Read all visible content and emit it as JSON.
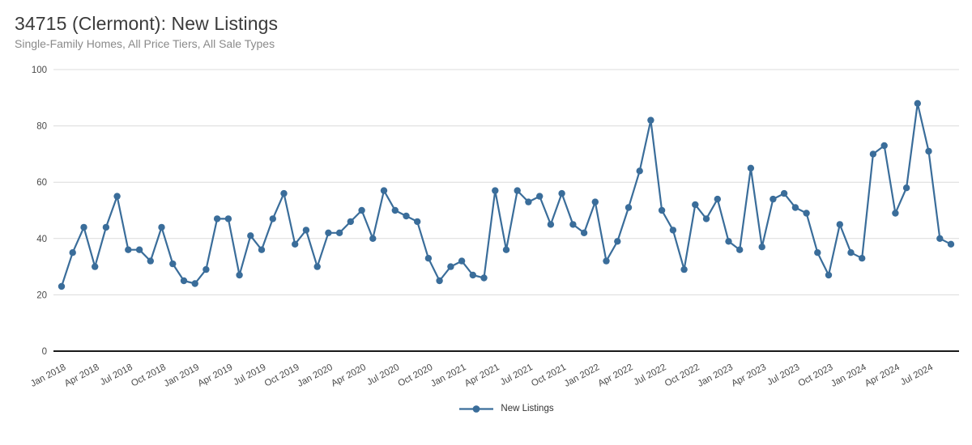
{
  "header": {
    "title": "34715 (Clermont): New Listings",
    "subtitle": "Single-Family Homes, All Price Tiers, All Sale Types"
  },
  "legend": {
    "label": "New Listings",
    "position": "bottom-center"
  },
  "colors": {
    "line": "#3a6d9a",
    "marker": "#3a6d9a",
    "grid": "#dcdcdc",
    "axis": "#1a1a1a",
    "tick_text": "#4a4a4a",
    "title_text": "#3b3b3b",
    "subtitle_text": "#8a8a8a",
    "background": "#ffffff"
  },
  "chart_data": {
    "type": "line",
    "title": "34715 (Clermont): New Listings",
    "subtitle": "Single-Family Homes, All Price Tiers, All Sale Types",
    "marker": "circle",
    "grid": "horizontal",
    "legend_position": "bottom-center",
    "ylim": [
      0,
      100
    ],
    "y_ticks": [
      0,
      20,
      40,
      60,
      80,
      100
    ],
    "x_tick_interval": 3,
    "x_label_rotation": -28,
    "x": [
      "Jan 2018",
      "Feb 2018",
      "Mar 2018",
      "Apr 2018",
      "May 2018",
      "Jun 2018",
      "Jul 2018",
      "Aug 2018",
      "Sep 2018",
      "Oct 2018",
      "Nov 2018",
      "Dec 2018",
      "Jan 2019",
      "Feb 2019",
      "Mar 2019",
      "Apr 2019",
      "May 2019",
      "Jun 2019",
      "Jul 2019",
      "Aug 2019",
      "Sep 2019",
      "Oct 2019",
      "Nov 2019",
      "Dec 2019",
      "Jan 2020",
      "Feb 2020",
      "Mar 2020",
      "Apr 2020",
      "May 2020",
      "Jun 2020",
      "Jul 2020",
      "Aug 2020",
      "Sep 2020",
      "Oct 2020",
      "Nov 2020",
      "Dec 2020",
      "Jan 2021",
      "Feb 2021",
      "Mar 2021",
      "Apr 2021",
      "May 2021",
      "Jun 2021",
      "Jul 2021",
      "Aug 2021",
      "Sep 2021",
      "Oct 2021",
      "Nov 2021",
      "Dec 2021",
      "Jan 2022",
      "Feb 2022",
      "Mar 2022",
      "Apr 2022",
      "May 2022",
      "Jun 2022",
      "Jul 2022",
      "Aug 2022",
      "Sep 2022",
      "Oct 2022",
      "Nov 2022",
      "Dec 2022",
      "Jan 2023",
      "Feb 2023",
      "Mar 2023",
      "Apr 2023",
      "May 2023",
      "Jun 2023",
      "Jul 2023",
      "Aug 2023",
      "Sep 2023",
      "Oct 2023",
      "Nov 2023",
      "Dec 2023",
      "Jan 2024",
      "Feb 2024",
      "Mar 2024",
      "Apr 2024",
      "May 2024",
      "Jun 2024",
      "Jul 2024",
      "Aug 2024",
      "Sep 2024"
    ],
    "x_tick_labels": [
      "Jan 2018",
      "Apr 2018",
      "Jul 2018",
      "Oct 2018",
      "Jan 2019",
      "Apr 2019",
      "Jul 2019",
      "Oct 2019",
      "Jan 2020",
      "Apr 2020",
      "Jul 2020",
      "Oct 2020",
      "Jan 2021",
      "Apr 2021",
      "Jul 2021",
      "Oct 2021",
      "Jan 2022",
      "Apr 2022",
      "Jul 2022",
      "Oct 2022",
      "Jan 2023",
      "Apr 2023",
      "Jul 2023",
      "Oct 2023",
      "Jan 2024",
      "Apr 2024",
      "Jul 2024"
    ],
    "series": [
      {
        "name": "New Listings",
        "values": [
          23,
          35,
          44,
          30,
          44,
          55,
          36,
          36,
          32,
          44,
          31,
          25,
          24,
          29,
          47,
          47,
          27,
          41,
          36,
          47,
          56,
          38,
          43,
          30,
          42,
          42,
          46,
          50,
          40,
          57,
          50,
          48,
          46,
          33,
          25,
          30,
          32,
          27,
          26,
          57,
          36,
          57,
          53,
          55,
          45,
          56,
          45,
          42,
          53,
          32,
          39,
          51,
          64,
          82,
          50,
          43,
          29,
          52,
          47,
          54,
          39,
          36,
          65,
          37,
          54,
          56,
          51,
          49,
          35,
          27,
          45,
          35,
          33,
          70,
          73,
          49,
          58,
          88,
          71,
          40,
          38
        ]
      }
    ]
  }
}
